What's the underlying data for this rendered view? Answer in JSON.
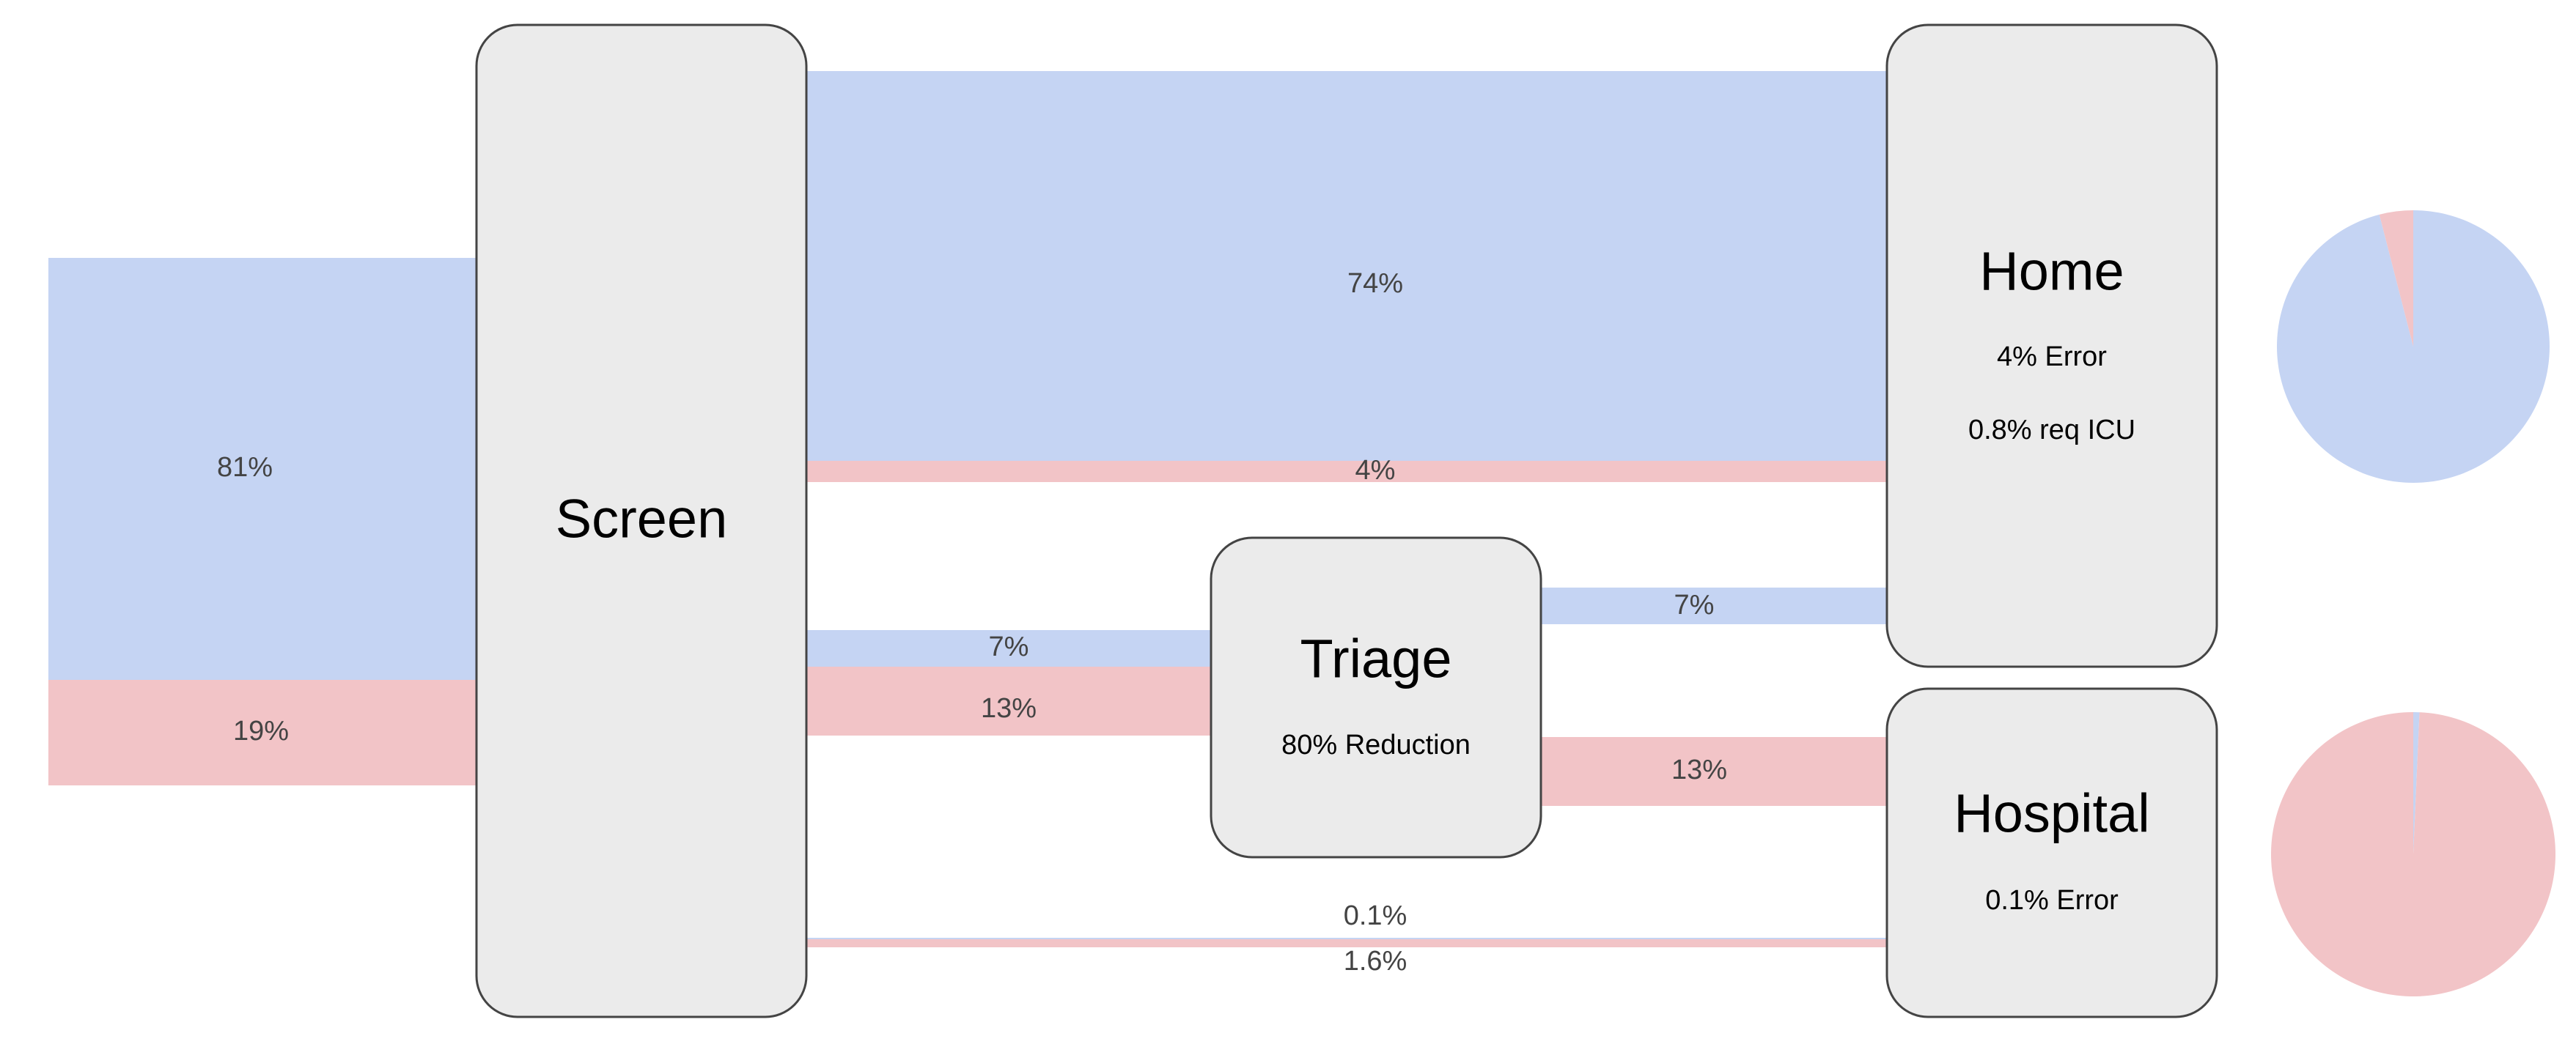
{
  "colors": {
    "healthy": "#c5d4f3",
    "sick": "#f2c4c7",
    "node_fill": "#ebebeb",
    "node_stroke": "#444444"
  },
  "nodes": {
    "screen": {
      "title": "Screen"
    },
    "triage": {
      "title": "Triage",
      "subtitle": "80% Reduction"
    },
    "home": {
      "title": "Home",
      "subtitle1": "4% Error",
      "subtitle2": "0.8% req ICU"
    },
    "hospital": {
      "title": "Hospital",
      "subtitle1": "0.1% Error"
    }
  },
  "flows": {
    "input_healthy": {
      "label": "81%",
      "value": 81,
      "category": "healthy"
    },
    "input_sick": {
      "label": "19%",
      "value": 19,
      "category": "sick"
    },
    "screen_home_healthy": {
      "label": "74%",
      "value": 74,
      "category": "healthy"
    },
    "screen_home_sick": {
      "label": "4%",
      "value": 4,
      "category": "sick"
    },
    "screen_triage_healthy": {
      "label": "7%",
      "value": 7,
      "category": "healthy"
    },
    "screen_triage_sick": {
      "label": "13%",
      "value": 13,
      "category": "sick"
    },
    "triage_home_healthy": {
      "label": "7%",
      "value": 7,
      "category": "healthy"
    },
    "triage_hospital_sick": {
      "label": "13%",
      "value": 13,
      "category": "sick"
    },
    "screen_hospital_healthy": {
      "label": "0.1%",
      "value": 0.1,
      "category": "healthy"
    },
    "screen_hospital_sick": {
      "label": "1.6%",
      "value": 1.6,
      "category": "sick"
    }
  },
  "pies": {
    "home": {
      "healthy": 96,
      "sick": 4
    },
    "hospital": {
      "healthy": 0.7,
      "sick": 99.3
    }
  }
}
